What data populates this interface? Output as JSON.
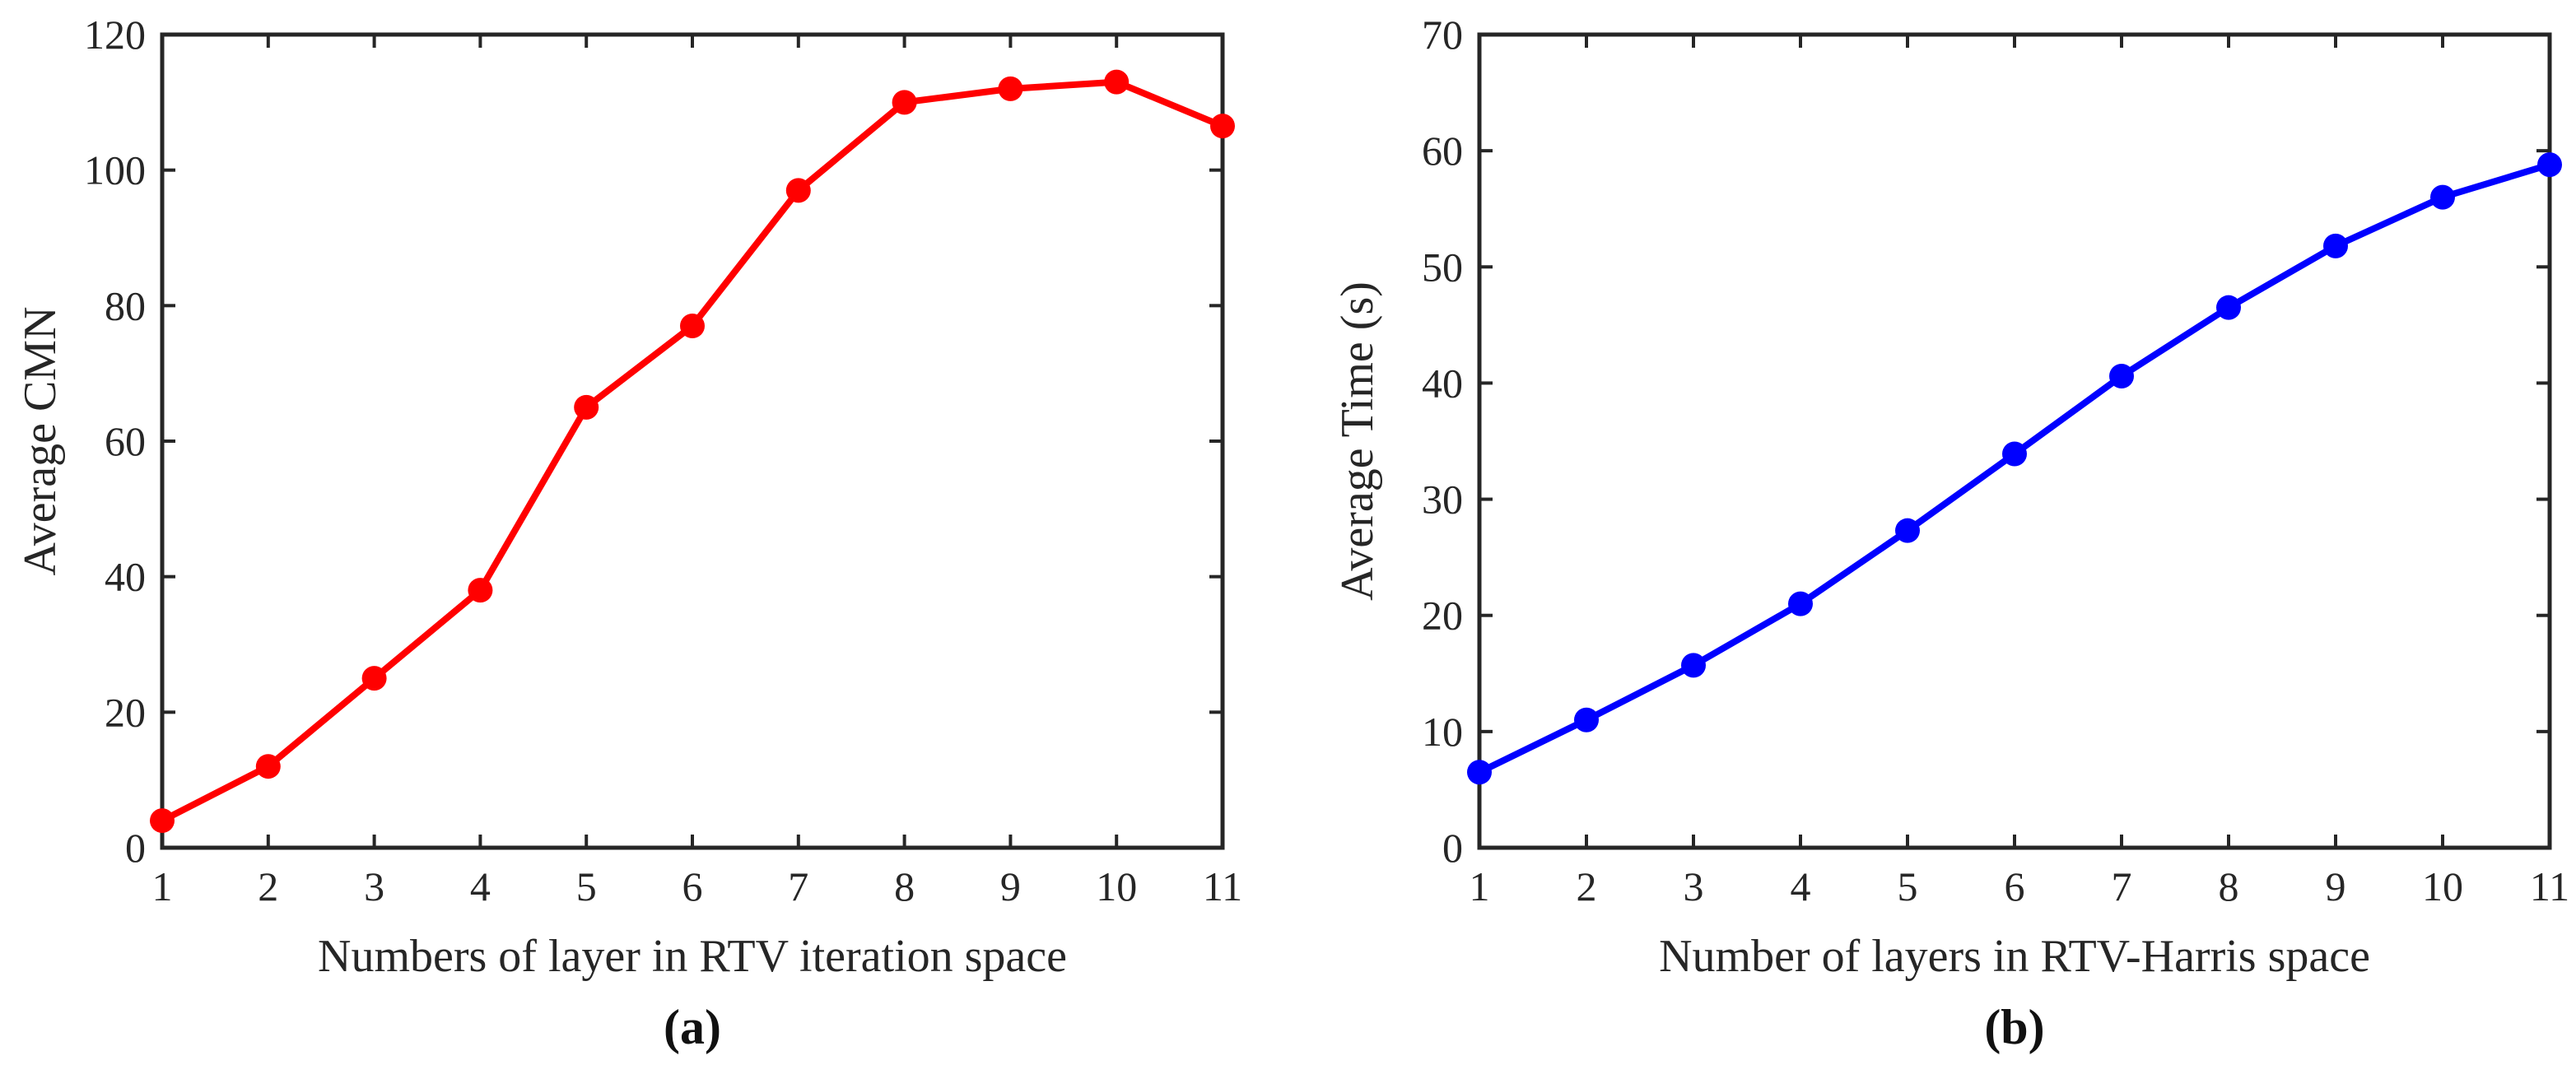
{
  "chart_data": [
    {
      "type": "line",
      "panel": "a",
      "caption": "(a)",
      "xlabel": "Numbers of layer in RTV iteration space",
      "ylabel": "Average CMN",
      "x": [
        1,
        2,
        3,
        4,
        5,
        6,
        7,
        8,
        9,
        10,
        11
      ],
      "values": [
        4,
        12,
        25,
        38,
        65,
        77,
        97,
        110,
        112,
        113,
        106.5
      ],
      "xlim": [
        1,
        11
      ],
      "ylim": [
        0,
        120
      ],
      "xticks": [
        "1",
        "2",
        "3",
        "4",
        "5",
        "6",
        "7",
        "8",
        "9",
        "10",
        "11"
      ],
      "yticks": [
        "0",
        "20",
        "40",
        "60",
        "80",
        "100",
        "120"
      ],
      "color": "#ff0000",
      "marker": "circle",
      "grid": false
    },
    {
      "type": "line",
      "panel": "b",
      "caption": "(b)",
      "xlabel": "Number of layers in RTV-Harris space",
      "ylabel": "Average Time (s)",
      "x": [
        1,
        2,
        3,
        4,
        5,
        6,
        7,
        8,
        9,
        10,
        11
      ],
      "values": [
        6.5,
        11,
        15.7,
        21,
        27.3,
        33.9,
        40.6,
        46.5,
        51.8,
        56,
        58.8
      ],
      "xlim": [
        1,
        11
      ],
      "ylim": [
        0,
        70
      ],
      "xticks": [
        "1",
        "2",
        "3",
        "4",
        "5",
        "6",
        "7",
        "8",
        "9",
        "10",
        "11"
      ],
      "yticks": [
        "0",
        "10",
        "20",
        "30",
        "40",
        "50",
        "60",
        "70"
      ],
      "color": "#0000ff",
      "marker": "circle",
      "grid": false
    }
  ]
}
